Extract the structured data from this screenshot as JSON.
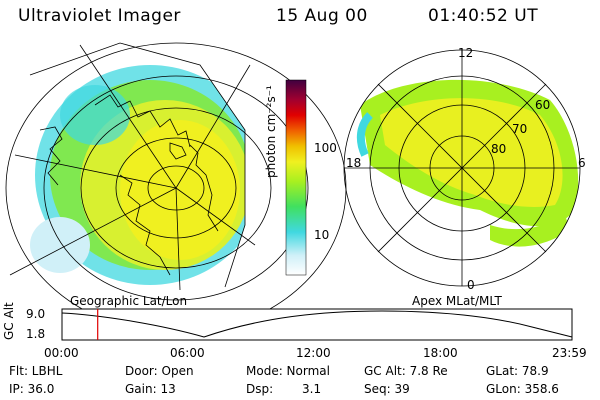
{
  "header": {
    "instrument": "Ultraviolet Imager",
    "date": "15 Aug 00",
    "time": "01:40:52 UT"
  },
  "maps": {
    "left_label": "Geographic Lat/Lon",
    "right_label": "Apex MLat/MLT",
    "mlt_labels": [
      "12",
      "18",
      "6",
      "0"
    ],
    "mlat_labels": [
      "60",
      "70",
      "80"
    ]
  },
  "colorbar": {
    "unit_label": "photon cm⁻²s⁻¹",
    "ticks": [
      "100",
      "10"
    ],
    "colors": [
      "#ffffff",
      "#d0f0f8",
      "#40d8e0",
      "#40e060",
      "#a8f020",
      "#f0f020",
      "#f0c000",
      "#f06000",
      "#e00000",
      "#a00030",
      "#400040"
    ]
  },
  "timeline": {
    "axis_title": "GC Alt",
    "y_ticks": [
      "9.0",
      "1.8"
    ],
    "x_ticks": [
      "00:00",
      "06:00",
      "12:00",
      "18:00",
      "23:59"
    ],
    "current_marker_hours": 1.68
  },
  "status": {
    "flt": "Flt: LBHL",
    "ip": "IP: 36.0",
    "door": "Door: Open",
    "gain": "Gain: 13",
    "mode": "Mode: Normal",
    "dsp_label": "Dsp:",
    "dsp_value": "3.1",
    "gcalt": "GC Alt: 7.8 Re",
    "seq": "Seq: 39",
    "glat": "GLat:  78.9",
    "glon": "GLon: 358.6"
  }
}
